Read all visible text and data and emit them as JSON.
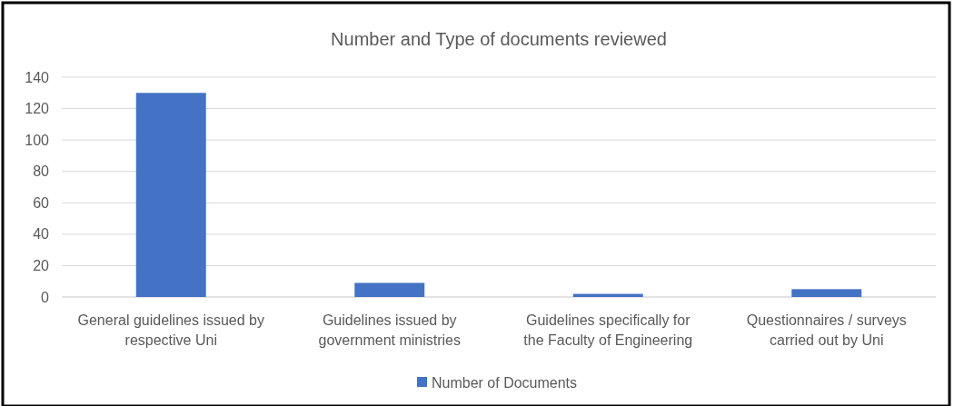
{
  "chart_data": {
    "type": "bar",
    "title": "Number and Type of documents reviewed",
    "categories": [
      "General guidelines issued by respective Uni",
      "Guidelines issued by government ministries",
      "Guidelines specifically for the Faculty of Engineering",
      "Questionnaires / surveys carried out by Uni"
    ],
    "series": [
      {
        "name": "Number of Documents",
        "color": "#4472c4",
        "values": [
          130,
          9,
          2,
          5
        ]
      }
    ],
    "ylim": [
      0,
      140
    ],
    "yticks": [
      0,
      20,
      40,
      60,
      80,
      100,
      120,
      140
    ],
    "grid": "y",
    "legend": "bottom"
  }
}
